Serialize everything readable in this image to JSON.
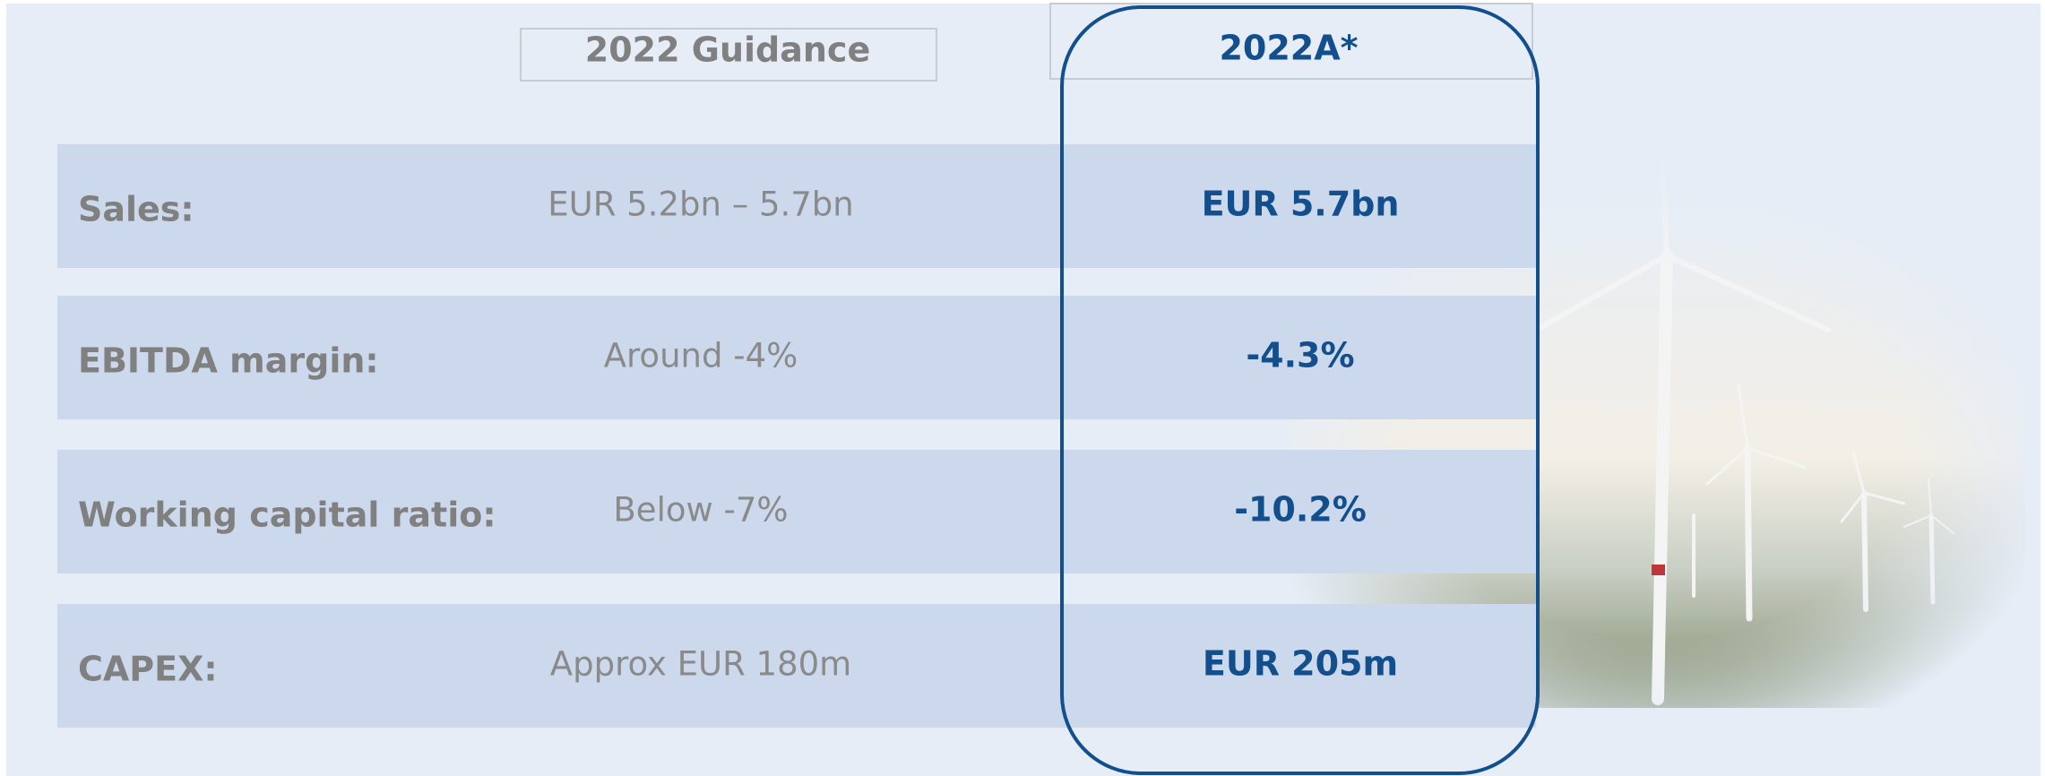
{
  "header": {
    "columns": [
      "2022 Guidance",
      "2022A*"
    ]
  },
  "rows": [
    {
      "label": "Sales:",
      "guidance": "EUR 5.2bn – 5.7bn",
      "actual": "EUR 5.7bn"
    },
    {
      "label": "EBITDA margin:",
      "guidance": "Around -4%",
      "actual": "-4.3%"
    },
    {
      "label": "Working capital ratio:",
      "guidance": "Below -7%",
      "actual": "-10.2%"
    },
    {
      "label": "CAPEX:",
      "guidance": "Approx EUR 180m",
      "actual": "EUR 205m"
    }
  ]
}
